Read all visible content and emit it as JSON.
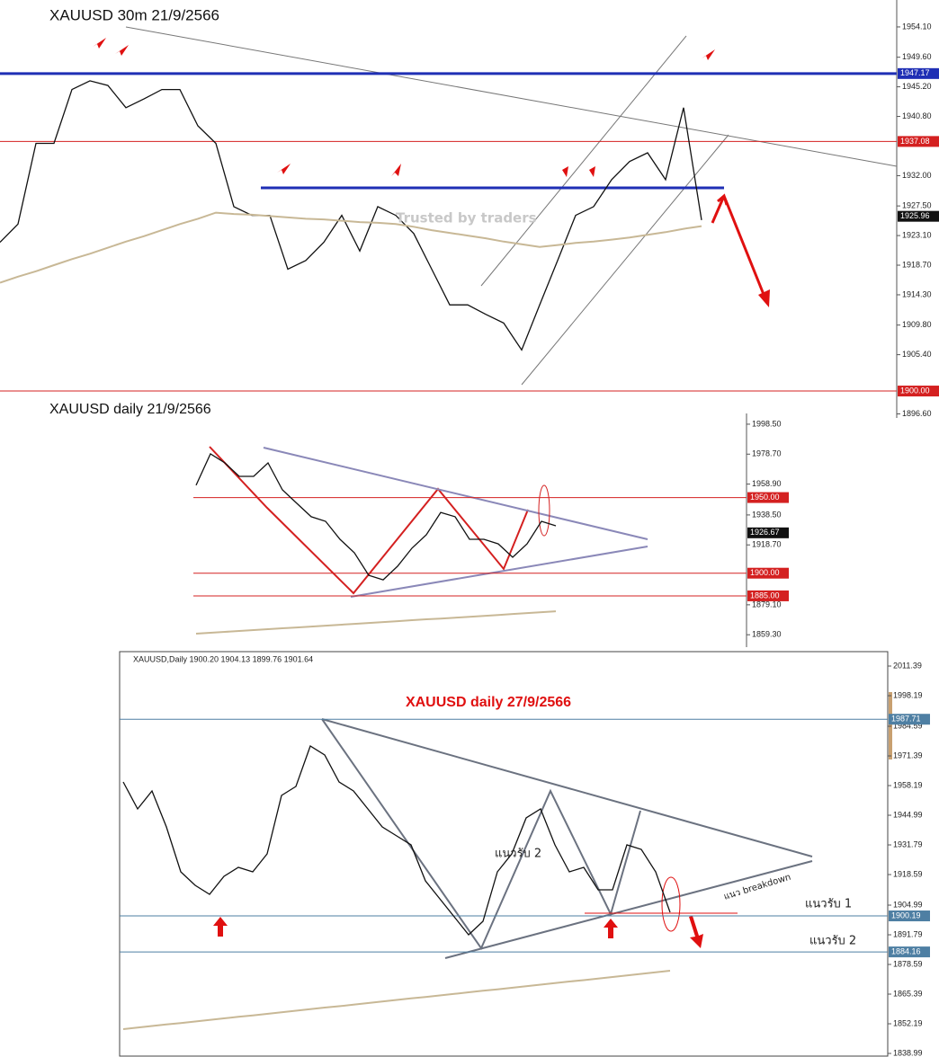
{
  "chart_data": [
    {
      "type": "line",
      "title": "XAUUSD  30m   21/9/2566",
      "ylim": [
        1896,
        1958.1
      ],
      "yticks": [
        {
          "value": 1954.1,
          "label": "1954.10"
        },
        {
          "value": 1949.6,
          "label": "1949.60"
        },
        {
          "value": 1945.2,
          "label": "1945.20"
        },
        {
          "value": 1940.8,
          "label": "1940.80"
        },
        {
          "value": 1932,
          "label": "1932.00"
        },
        {
          "value": 1927.5,
          "label": "1927.50"
        },
        {
          "value": 1923.1,
          "label": "1923.10"
        },
        {
          "value": 1918.7,
          "label": "1918.70"
        },
        {
          "value": 1914.3,
          "label": "1914.30"
        },
        {
          "value": 1909.8,
          "label": "1909.80"
        },
        {
          "value": 1905.4,
          "label": "1905.40"
        },
        {
          "value": 1896.6,
          "label": "1896.60"
        }
      ],
      "levels": [
        {
          "value": 1947.17,
          "color": "#1f2fb5",
          "line": true
        },
        {
          "value": 1937.08,
          "color": "#d42020",
          "line": true
        },
        {
          "value": 1925.96,
          "color": "#111111",
          "line": false
        },
        {
          "value": {
            "value": 1900,
            "label": "1900.00"
          },
          "color": "#d42020",
          "line": true
        }
      ],
      "series": [
        {
          "color": "#111111",
          "values": [
            1922.1,
            1924.8,
            1936.8,
            1936.8,
            1944.8,
            1946.1,
            1945.4,
            1942.1,
            1943.4,
            1944.8,
            1944.8,
            1939.4,
            1936.8,
            1927.4,
            1926.1,
            1926.1,
            1918.1,
            1919.4,
            1922.1,
            1926.1,
            1920.8,
            1927.4,
            1926.1,
            1923.4,
            1918.1,
            1912.8,
            1912.8,
            1911.4,
            1910.1,
            1906.1,
            1912.8,
            1919.4,
            1926.1,
            1927.4,
            1931.4,
            1934.1,
            1935.4,
            1931.4,
            1942.1,
            1925.4
          ]
        },
        {
          "color": "#c8b896",
          "values": [
            1916.1,
            1917.0,
            1917.8,
            1918.7,
            1919.6,
            1920.4,
            1921.3,
            1922.2,
            1923.0,
            1923.9,
            1924.8,
            1925.6,
            1926.5,
            1926.3,
            1926.2,
            1926.0,
            1925.8,
            1925.6,
            1925.5,
            1925.3,
            1925.1,
            1925.0,
            1924.8,
            1924.4,
            1923.9,
            1923.5,
            1923.1,
            1922.7,
            1922.2,
            1921.8,
            1921.4,
            1921.7,
            1922.0,
            1922.2,
            1922.5,
            1922.8,
            1923.2,
            1923.6,
            1924.1,
            1924.5
          ]
        }
      ],
      "annotations": [
        "Trusted by traders"
      ]
    },
    {
      "type": "line",
      "title": "XAUUSD  daily  21/9/2566",
      "ylim": [
        1851.1,
        2005.6
      ],
      "yticks": [
        {
          "value": 1998.5,
          "label": "1998.50"
        },
        {
          "value": 1978.7,
          "label": "1978.70"
        },
        {
          "value": 1958.9,
          "label": "1958.90"
        },
        {
          "value": 1938.5,
          "label": "1938.50"
        },
        {
          "value": 1918.7,
          "label": "1918.70"
        },
        {
          "value": 1879.1,
          "label": "1879.10"
        },
        {
          "value": 1859.3,
          "label": "1859.30"
        }
      ],
      "levels": [
        {
          "value": {
            "value": 1950,
            "label": "1950.00"
          },
          "color": "#d42020",
          "line": true
        },
        {
          "value": 1926.67,
          "color": "#111111",
          "line": false
        },
        {
          "value": {
            "value": 1900,
            "label": "1900.00"
          },
          "color": "#d42020",
          "line": true
        },
        {
          "value": {
            "value": 1885,
            "label": "1885.00"
          },
          "color": "#d42020",
          "line": true
        }
      ],
      "series": [
        {
          "color": "#111111",
          "values": [
            1958.1,
            1978.9,
            1972.9,
            1964.0,
            1964.0,
            1972.9,
            1955.1,
            1946.2,
            1937.3,
            1934.3,
            1922.4,
            1913.5,
            1898.6,
            1895.6,
            1904.6,
            1916.5,
            1925.4,
            1940.2,
            1937.3,
            1922.4,
            1922.4,
            1919.4,
            1910.5,
            1919.4,
            1934.3,
            1931.3
          ]
        },
        {
          "color": "#c8b896",
          "values": [
            1860.0,
            1860.6,
            1861.2,
            1861.8,
            1862.4,
            1863.0,
            1863.6,
            1864.1,
            1864.7,
            1865.3,
            1865.9,
            1866.5,
            1867.1,
            1867.7,
            1868.3,
            1868.9,
            1869.5,
            1870.0,
            1870.6,
            1871.2,
            1871.8,
            1872.4,
            1873.0,
            1873.6,
            1874.2,
            1874.8
          ]
        }
      ],
      "annotations": []
    },
    {
      "type": "line",
      "title": "XAUUSD  daily  27/9/2566",
      "header": "XAUUSD,Daily  1900.20 1904.13 1899.76 1901.64",
      "ylim": [
        1837.4,
        2017.8
      ],
      "yticks": [
        {
          "value": 2011.39,
          "label": "2011.39"
        },
        {
          "value": 1998.19,
          "label": "1998.19"
        },
        {
          "value": 1984.59,
          "label": "1984.59"
        },
        {
          "value": 1971.39,
          "label": "1971.39"
        },
        {
          "value": 1958.19,
          "label": "1958.19"
        },
        {
          "value": 1944.99,
          "label": "1944.99"
        },
        {
          "value": 1931.79,
          "label": "1931.79"
        },
        {
          "value": 1918.59,
          "label": "1918.59"
        },
        {
          "value": 1904.99,
          "label": "1904.99"
        },
        {
          "value": 1891.79,
          "label": "1891.79"
        },
        {
          "value": 1878.59,
          "label": "1878.59"
        },
        {
          "value": 1865.39,
          "label": "1865.39"
        },
        {
          "value": 1852.19,
          "label": "1852.19"
        },
        {
          "value": 1838.99,
          "label": "1838.99"
        }
      ],
      "levels": [
        {
          "value": 1987.71,
          "color": "#4e7fa3",
          "line": true
        },
        {
          "value": 1900.19,
          "color": "#4e7fa3",
          "line": true
        },
        {
          "value": 1884.16,
          "color": "#4e7fa3",
          "line": true
        }
      ],
      "series": [
        {
          "color": "#111111",
          "values": [
            1959.8,
            1947.8,
            1955.8,
            1939.8,
            1919.8,
            1913.8,
            1909.8,
            1917.8,
            1921.8,
            1919.8,
            1927.8,
            1953.8,
            1957.8,
            1975.8,
            1971.8,
            1959.8,
            1955.8,
            1947.8,
            1939.8,
            1935.8,
            1931.8,
            1915.8,
            1907.8,
            1899.8,
            1891.8,
            1897.8,
            1919.8,
            1927.8,
            1943.8,
            1947.8,
            1931.8,
            1919.8,
            1921.8,
            1911.8,
            1911.8,
            1931.8,
            1929.8,
            1919.8,
            1901.8
          ]
        },
        {
          "color": "#c8b896",
          "values": [
            1849.8,
            1850.5,
            1851.2,
            1851.9,
            1852.5,
            1853.2,
            1853.9,
            1854.6,
            1855.3,
            1855.9,
            1856.6,
            1857.3,
            1858.0,
            1858.7,
            1859.4,
            1860.0,
            1860.7,
            1861.4,
            1862.1,
            1862.8,
            1863.5,
            1864.1,
            1864.8,
            1865.5,
            1866.2,
            1866.9,
            1867.5,
            1868.2,
            1868.9,
            1869.6,
            1870.3,
            1871.0,
            1871.6,
            1872.3,
            1873.0,
            1873.7,
            1874.4,
            1875.1,
            1875.8
          ]
        }
      ],
      "annotations": [
        "แนวรับ 2",
        "แนว breakdown",
        "แนวรับ 1",
        "แนวรับ 2"
      ]
    }
  ]
}
